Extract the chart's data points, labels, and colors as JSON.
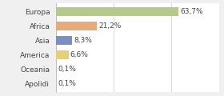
{
  "categories": [
    "Europa",
    "Africa",
    "Asia",
    "America",
    "Oceania",
    "Apolidi"
  ],
  "values": [
    63.7,
    21.2,
    8.3,
    6.6,
    0.1,
    0.1
  ],
  "labels": [
    "63,7%",
    "21,2%",
    "8,3%",
    "6,6%",
    "0,1%",
    "0,1%"
  ],
  "bar_colors": [
    "#b5c98a",
    "#e8aa78",
    "#7b8fc2",
    "#e8cf72",
    "#dddddd",
    "#dddddd"
  ],
  "background_color": "#f0f0f0",
  "plot_bg": "#ffffff",
  "text_color": "#444444",
  "label_fontsize": 6.5,
  "ylabel_fontsize": 6.5,
  "xlim": [
    0,
    85
  ],
  "grid_lines": [
    0,
    30,
    60,
    90
  ],
  "grid_color": "#d8d8d8"
}
